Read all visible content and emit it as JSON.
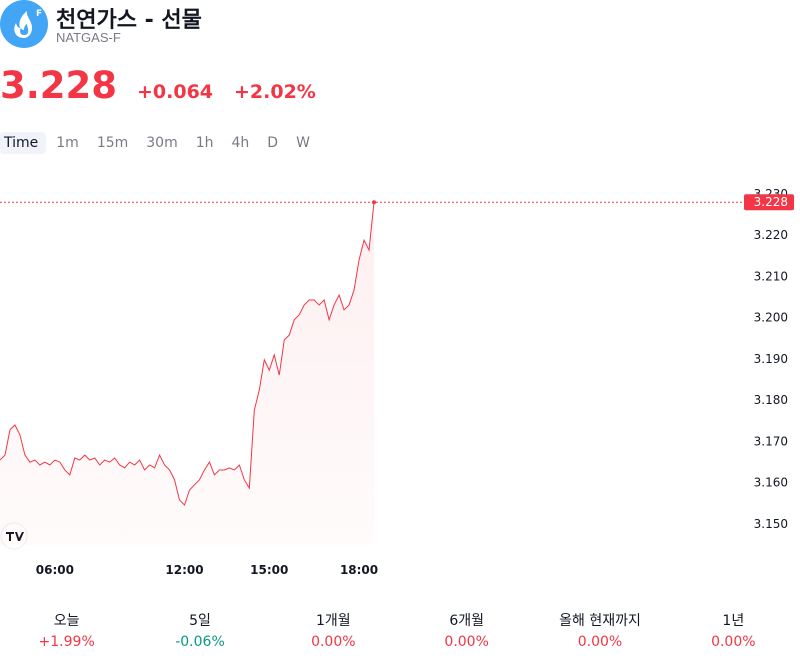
{
  "header": {
    "name": "천연가스 - 선물",
    "symbol": "NATGAS-F",
    "price": "3.228",
    "change": "+0.064",
    "change_pct": "+2.02%"
  },
  "timeframes": [
    "Time",
    "1m",
    "15m",
    "30m",
    "1h",
    "4h",
    "D",
    "W"
  ],
  "performance": [
    {
      "label": "오늘",
      "value": "+1.99%"
    },
    {
      "label": "5일",
      "value": "-0.06%"
    },
    {
      "label": "1개월",
      "value": "0.00%"
    },
    {
      "label": "6개월",
      "value": "0.00%"
    },
    {
      "label": "올해 현재까지",
      "value": "0.00%"
    },
    {
      "label": "1년",
      "value": "0.00%"
    }
  ],
  "chart_data": {
    "type": "line",
    "color": "#f23645",
    "categories": [
      null,
      null,
      null,
      null,
      null,
      null,
      null,
      null,
      null,
      null,
      null,
      "06:00",
      null,
      null,
      null,
      null,
      null,
      null,
      null,
      null,
      null,
      null,
      null,
      null,
      null,
      null,
      null,
      null,
      null,
      null,
      null,
      null,
      null,
      null,
      null,
      null,
      null,
      "12:00",
      null,
      null,
      null,
      null,
      null,
      null,
      null,
      null,
      null,
      null,
      null,
      null,
      null,
      null,
      null,
      null,
      "15:00",
      null,
      null,
      null,
      null,
      null,
      null,
      null,
      null,
      null,
      null,
      null,
      null,
      null,
      null,
      null,
      null,
      null,
      "18:00",
      null,
      null,
      null
    ],
    "values": [
      3.1655,
      3.1667,
      3.1728,
      3.174,
      3.1716,
      3.1667,
      3.165,
      3.1655,
      3.1643,
      3.165,
      3.1643,
      3.1655,
      3.165,
      3.1631,
      3.1619,
      3.166,
      3.1655,
      3.1667,
      3.1655,
      3.166,
      3.1643,
      3.1655,
      3.165,
      3.166,
      3.1643,
      3.1636,
      3.165,
      3.1643,
      3.1655,
      3.1631,
      3.1643,
      3.1636,
      3.1667,
      3.1643,
      3.1631,
      3.1607,
      3.1558,
      3.1546,
      3.1582,
      3.1595,
      3.1607,
      3.1631,
      3.165,
      3.1619,
      3.1631,
      3.1631,
      3.1636,
      3.1631,
      3.1643,
      3.1607,
      3.1587,
      3.1776,
      3.1825,
      3.1898,
      3.1873,
      3.191,
      3.1861,
      3.1946,
      3.1958,
      3.1995,
      3.2007,
      3.2031,
      3.2043,
      3.2043,
      3.2031,
      3.2043,
      3.1995,
      3.2031,
      3.2055,
      3.2019,
      3.2031,
      3.2067,
      3.214,
      3.2188,
      3.2164,
      3.228
    ],
    "ylim": [
      3.145,
      3.233
    ],
    "yticks": [
      {
        "value": 3.15,
        "label": "3.150"
      },
      {
        "value": 3.16,
        "label": "3.160"
      },
      {
        "value": 3.17,
        "label": "3.170"
      },
      {
        "value": 3.18,
        "label": "3.180"
      },
      {
        "value": 3.19,
        "label": "3.190"
      },
      {
        "value": 3.2,
        "label": "3.200"
      },
      {
        "value": 3.21,
        "label": "3.210"
      },
      {
        "value": 3.22,
        "label": "3.220"
      },
      {
        "value": 3.23,
        "label": "3.230"
      }
    ]
  }
}
